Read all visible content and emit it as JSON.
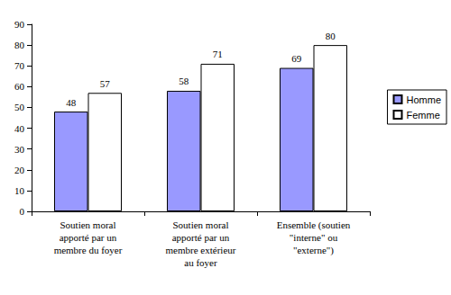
{
  "chart_data": {
    "type": "bar",
    "categories": [
      "Soutien moral\napporté par un\nmembre du foyer",
      "Soutien moral\napporté par un\nmembre extérieur\nau foyer",
      "Ensemble (soutien\n\"interne\" ou\n\"externe\")"
    ],
    "series": [
      {
        "name": "Homme",
        "color": "#9999ff",
        "values": [
          48,
          58,
          69
        ]
      },
      {
        "name": "Femme",
        "color": "#ffffff",
        "values": [
          57,
          71,
          80
        ]
      }
    ],
    "ylim": [
      0,
      90
    ],
    "yticks": [
      0,
      10,
      20,
      30,
      40,
      50,
      60,
      70,
      80,
      90
    ],
    "grid": false,
    "legend": "right",
    "data_labels": true
  }
}
